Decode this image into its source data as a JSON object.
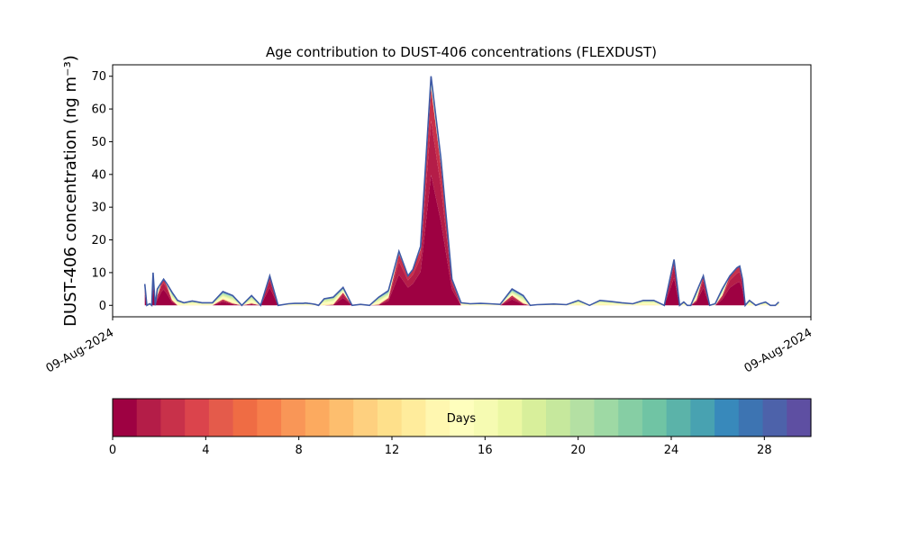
{
  "chart_data": {
    "type": "area",
    "title": "Age contribution to DUST-406 concentrations (FLEXDUST)",
    "ylabel": "DUST-406 concentration (ng m⁻³)",
    "xlabel": "",
    "x_tick_labels": [
      "09-Aug-2024",
      "09-Aug-2024"
    ],
    "y_ticks": [
      0,
      10,
      20,
      30,
      40,
      50,
      60,
      70
    ],
    "ylim": [
      -3.5,
      73.5
    ],
    "xlim": [
      0,
      100
    ],
    "x": [
      4.6,
      4.9,
      5.3,
      5.6,
      5.8,
      6.1,
      6.4,
      6.7,
      7.0,
      7.3,
      7.8,
      8.5,
      9.3,
      10.2,
      11.4,
      12.8,
      14.3,
      15.8,
      17.2,
      18.5,
      19.9,
      21.2,
      22.5,
      23.7,
      25.2,
      26.1,
      27.0,
      27.3,
      27.6,
      28.0,
      28.5,
      29.0,
      29.5,
      30.3,
      31.6,
      33.0,
      34.3,
      35.5,
      36.8,
      38.1,
      39.5,
      41.0,
      42.3,
      43.0,
      44.1,
      45.6,
      47.0,
      48.6,
      49.9,
      51.2,
      52.7,
      54.0,
      55.5,
      57.2,
      58.8,
      59.8,
      60.8,
      62.0,
      63.2,
      65.0,
      66.7,
      68.3,
      69.8,
      71.3,
      72.9,
      74.5,
      76.0,
      77.5,
      79.0,
      80.4,
      81.2,
      81.8,
      82.3,
      82.8,
      83.6,
      84.6,
      85.5,
      86.3,
      87.3,
      88.4,
      89.4,
      89.8,
      90.2,
      90.6,
      91.2,
      92.1,
      92.7,
      93.5,
      94.2,
      94.5,
      94.9,
      95.4
    ],
    "total": [
      6.5,
      0,
      0.5,
      0,
      10,
      0,
      5,
      6,
      7,
      8,
      6.5,
      4,
      1.5,
      0.8,
      1.3,
      0.8,
      0.8,
      4.2,
      3,
      0,
      3,
      0,
      9,
      0,
      0.5,
      0.6,
      0.6,
      0.6,
      0.7,
      0.6,
      0.5,
      0.3,
      0,
      2,
      2.5,
      5.5,
      0,
      0.3,
      0,
      2.5,
      4.5,
      16.5,
      9,
      11,
      18,
      70,
      45,
      8,
      0.8,
      0.5,
      0.6,
      0.5,
      0.3,
      5,
      3,
      0,
      0.2,
      0.3,
      0.4,
      0.2,
      1.5,
      0,
      1.5,
      1.2,
      0.8,
      0.5,
      1.5,
      1.5,
      0,
      14,
      0,
      1,
      0,
      0,
      4,
      9,
      0,
      0.5,
      5,
      9,
      11.5,
      12,
      8,
      0,
      1.5,
      0,
      0.5,
      1,
      0,
      0,
      0,
      1
    ],
    "colorbar": {
      "label": "Days",
      "range": [
        0,
        30
      ],
      "ticks": [
        0,
        4,
        8,
        12,
        16,
        20,
        24,
        28
      ],
      "colors": [
        "#9e0142",
        "#b41d48",
        "#c8314a",
        "#db444c",
        "#e45b4b",
        "#ef6c44",
        "#f67f4b",
        "#f99657",
        "#fcaa5f",
        "#fdbe6e",
        "#fed07f",
        "#fee08b",
        "#ffec9c",
        "#fff7b0",
        "#fefebd",
        "#f6fbb2",
        "#ebf7a3",
        "#d8ef9b",
        "#c6e89d",
        "#b4e0a3",
        "#9ed9a4",
        "#86cea4",
        "#70c4a4",
        "#5bb3a9",
        "#48a2b1",
        "#3889bb",
        "#3d74b2",
        "#4d62aa",
        "#5e4fa2"
      ]
    }
  }
}
